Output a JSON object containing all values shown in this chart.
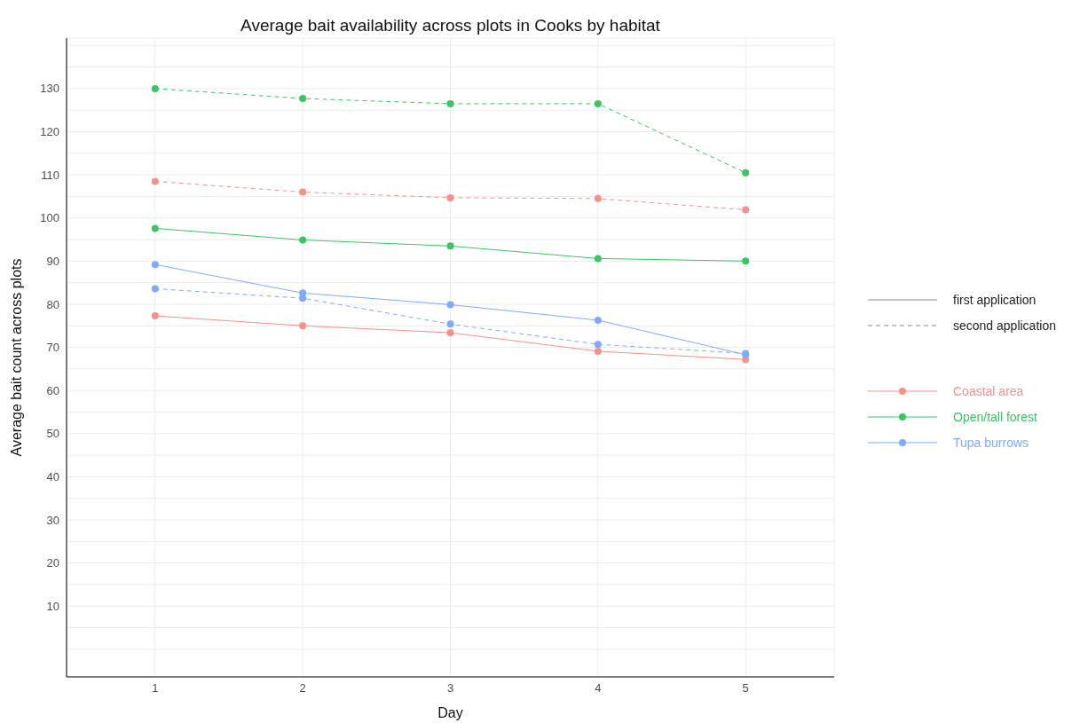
{
  "chart_data": {
    "type": "line",
    "title": "Average bait availability across plots in Cooks by habitat",
    "xlabel": "Day",
    "ylabel": "Average bait count across plots",
    "x": [
      1,
      2,
      3,
      4,
      5
    ],
    "xlim": [
      0.4,
      5.6
    ],
    "xticks": [
      1,
      2,
      3,
      4,
      5
    ],
    "ylim": [
      -6.4,
      141.7
    ],
    "yticks": [
      {
        "value": 0,
        "label": null
      },
      {
        "value": 5,
        "label": null
      },
      10,
      {
        "value": 15,
        "label": null
      },
      20,
      {
        "value": 25,
        "label": null
      },
      30,
      {
        "value": 35,
        "label": null
      },
      40,
      {
        "value": 45,
        "label": null
      },
      50,
      {
        "value": 55,
        "label": null
      },
      60,
      {
        "value": 65,
        "label": null
      },
      70,
      {
        "value": 75,
        "label": null
      },
      80,
      {
        "value": 85,
        "label": null
      },
      90,
      {
        "value": 95,
        "label": null
      },
      100,
      {
        "value": 105,
        "label": null
      },
      110,
      {
        "value": 115,
        "label": null
      },
      120,
      {
        "value": 125,
        "label": null
      },
      130,
      {
        "value": 135,
        "label": null
      },
      {
        "value": 140,
        "label": null
      }
    ],
    "grid": true,
    "legend": "right",
    "marker": "circle",
    "annotations": [
      "first application",
      "second application"
    ],
    "series": [
      {
        "name": "Coastal area",
        "color": "#f79088",
        "line_style": "solid",
        "values": [
          77.3,
          75,
          73.4,
          69.1,
          67.2
        ]
      },
      {
        "name": "Open/tall forest",
        "color": "#3ac562",
        "line_style": "solid",
        "values": [
          97.6,
          94.9,
          93.5,
          90.6,
          90
        ]
      },
      {
        "name": "Tupa burrows",
        "color": "#7faaff",
        "line_style": "solid",
        "values": [
          89.2,
          82.6,
          79.9,
          76.3,
          68.3
        ]
      },
      {
        "color": "#f79088",
        "line_style": "dashed",
        "values": [
          108.5,
          106,
          104.7,
          104.5,
          101.9
        ]
      },
      {
        "color": "#3ac562",
        "line_style": "dashed",
        "values": [
          130,
          127.7,
          126.5,
          126.5,
          110.5
        ]
      },
      {
        "color": "#7faaff",
        "line_style": "dashed",
        "values": [
          83.6,
          81.4,
          75.4,
          70.7,
          68.6
        ]
      }
    ]
  }
}
